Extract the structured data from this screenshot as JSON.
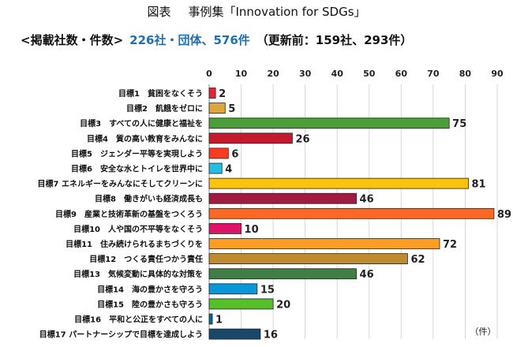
{
  "header": {
    "figure_label": "図表",
    "title": "事例集「Innovation for SDGs」",
    "subtitle_label": "<掲載社数・件数>",
    "subtitle_highlight": "226社・団体、576件",
    "subtitle_note": "（更新前：159社、293件）"
  },
  "chart_data": {
    "type": "bar",
    "orientation": "horizontal",
    "categories": [
      "目標1　貧困をなくそう",
      "目標2　飢餓をゼロに",
      "目標3　すべての人に健康と福祉を",
      "目標4　質の高い教育をみんなに",
      "目標5　ジェンダー平等を実現しよう",
      "目標6　安全な水とトイレを世界中に",
      "目標7 エネルギーをみんなにそしてクリーンに",
      "目標8　働きがいも経済成長も",
      "目標9　産業と技術革新の基盤をつくろう",
      "目標10　人や国の不平等をなくそう",
      "目標11　住み続けられるまちづくりを",
      "目標12　つくる責任つかう責任",
      "目標13　気候変動に具体的な対策を",
      "目標14　海の豊かさを守ろう",
      "目標15　陸の豊かさも守ろう",
      "目標16　平和と公正をすべての人に",
      "目標17 パートナーシップで目標を達成しよう"
    ],
    "values": [
      2,
      5,
      75,
      26,
      6,
      4,
      81,
      46,
      89,
      10,
      72,
      62,
      46,
      15,
      20,
      1,
      16
    ],
    "colors": [
      "#e5243b",
      "#dda63a",
      "#4c9f38",
      "#c5192d",
      "#ff3a21",
      "#26bde2",
      "#fcc30b",
      "#a21942",
      "#fd6925",
      "#dd1367",
      "#fd9d24",
      "#bf8b2e",
      "#3f7e44",
      "#0a97d9",
      "#56c02b",
      "#00689d",
      "#19486a"
    ],
    "xlim": [
      0,
      90
    ],
    "xticks": [
      0,
      10,
      20,
      30,
      40,
      50,
      60,
      70,
      80,
      90
    ],
    "unit_label": "（件）",
    "grid": true
  }
}
